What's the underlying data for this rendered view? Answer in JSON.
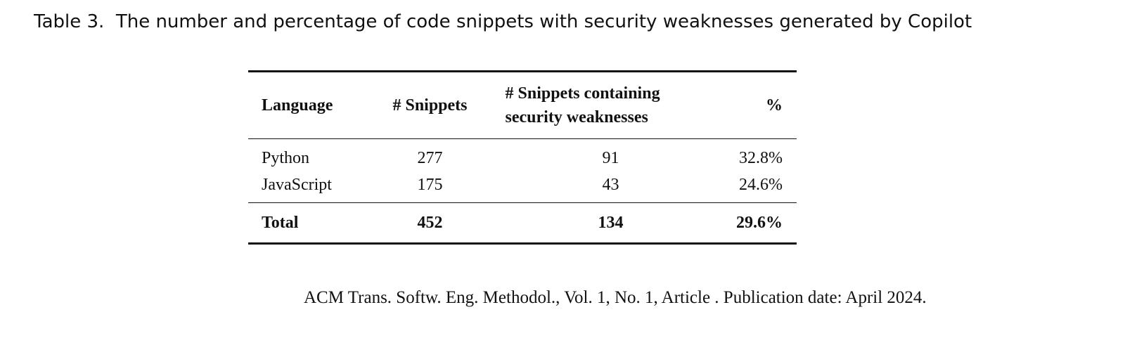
{
  "caption": "Table 3.  The number and percentage of code snippets with security weaknesses generated by Copilot",
  "table": {
    "header": [
      "Language",
      "# Snippets",
      "# Snippets containing security weaknesses",
      "%"
    ],
    "rows": [
      [
        "Python",
        "277",
        "91",
        "32.8%"
      ],
      [
        "JavaScript",
        "175",
        "43",
        "24.6%"
      ]
    ],
    "total": [
      "Total",
      "452",
      "134",
      "29.6%"
    ]
  },
  "footer": "ACM Trans. Softw. Eng. Methodol., Vol. 1, No. 1, Article . Publication date: April 2024."
}
